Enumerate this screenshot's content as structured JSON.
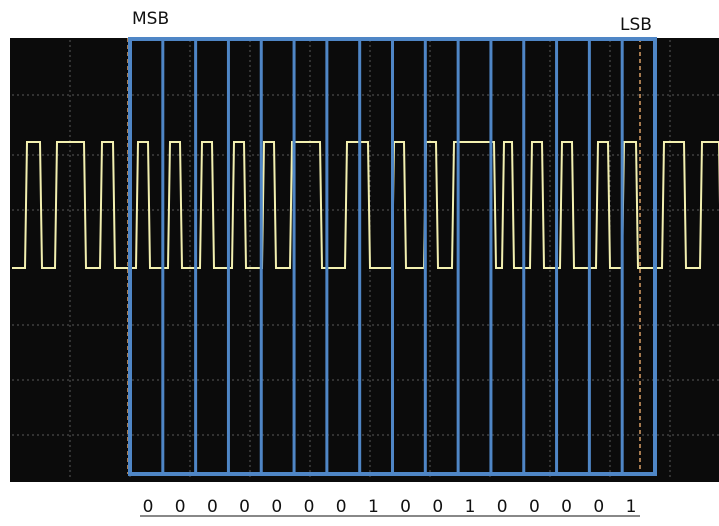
{
  "labels": {
    "msb": "MSB",
    "lsb": "LSB"
  },
  "bits": [
    "0",
    "0",
    "0",
    "0",
    "0",
    "0",
    "0",
    "1",
    "0",
    "0",
    "1",
    "0",
    "0",
    "0",
    "0",
    "1"
  ]
}
